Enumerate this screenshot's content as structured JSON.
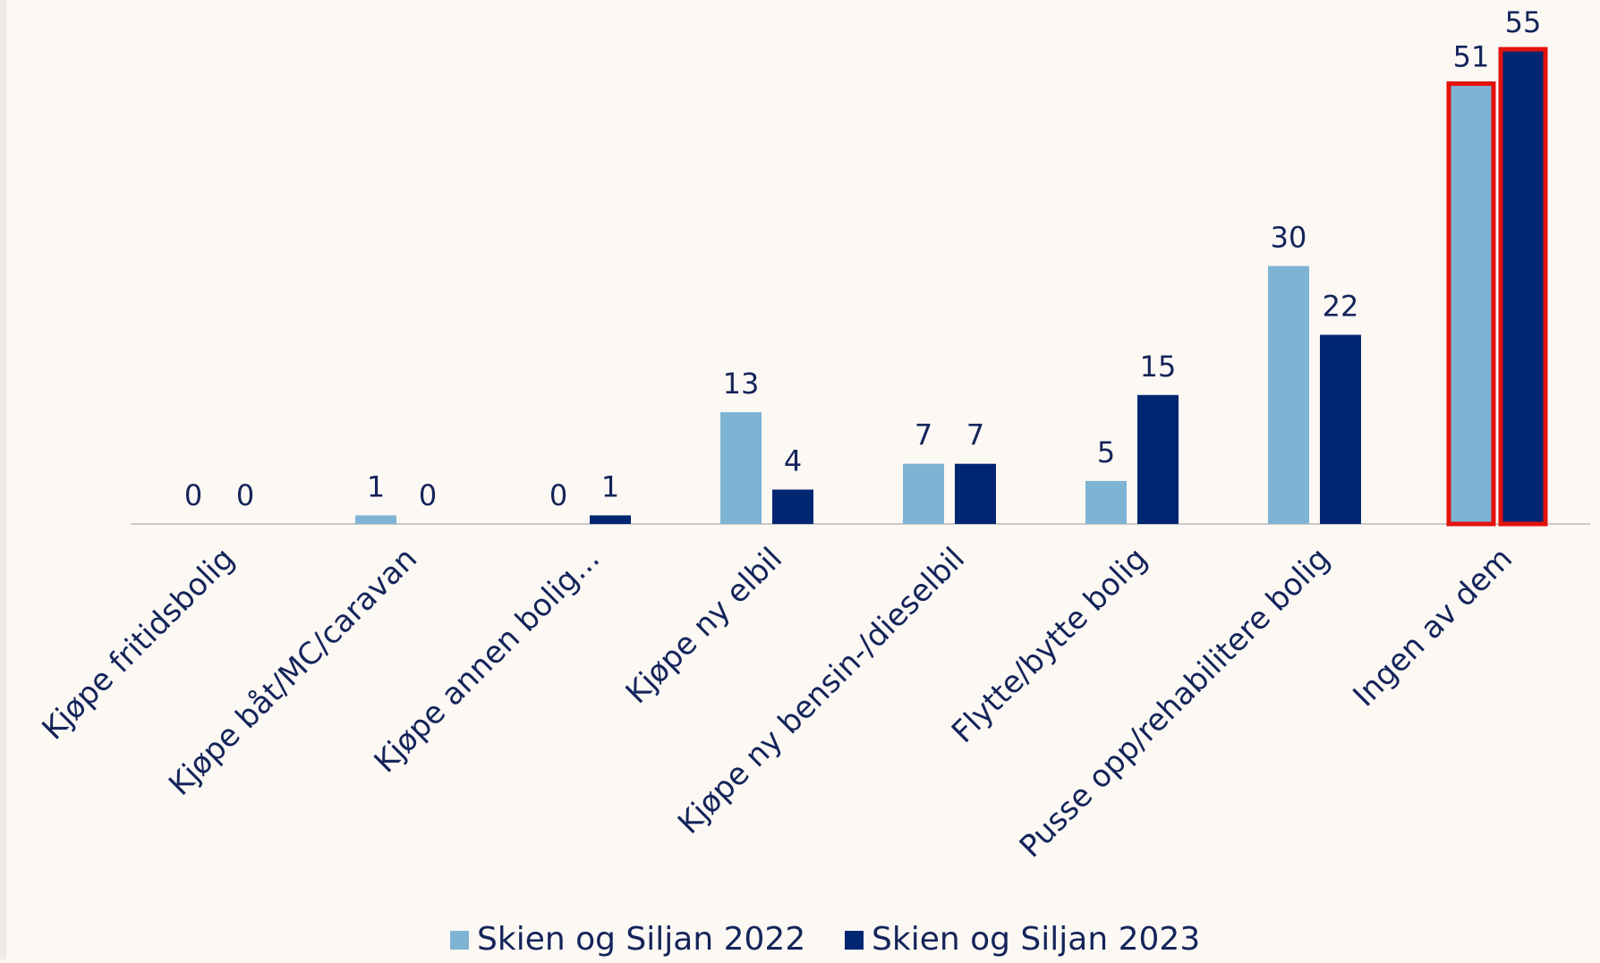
{
  "chart_data": {
    "type": "bar",
    "categories": [
      "Kjøpe fritidsbolig",
      "Kjøpe båt/MC/caravan",
      "Kjøpe annen bolig...",
      "Kjøpe ny elbil",
      "Kjøpe ny bensin-/dieselbil",
      "Flytte/bytte bolig",
      "Pusse opp/rehabilitere bolig",
      "Ingen av dem"
    ],
    "series": [
      {
        "name": "Skien og Siljan 2022",
        "color": "#7fb3d3",
        "values": [
          0,
          1,
          0,
          13,
          7,
          5,
          30,
          51
        ]
      },
      {
        "name": "Skien og Siljan 2023",
        "color": "#002672",
        "values": [
          0,
          0,
          1,
          4,
          7,
          15,
          22,
          55
        ]
      }
    ],
    "ylim": [
      0,
      60
    ],
    "highlight": {
      "category": 7,
      "color": "#e3120b"
    },
    "legend": "bottom"
  }
}
